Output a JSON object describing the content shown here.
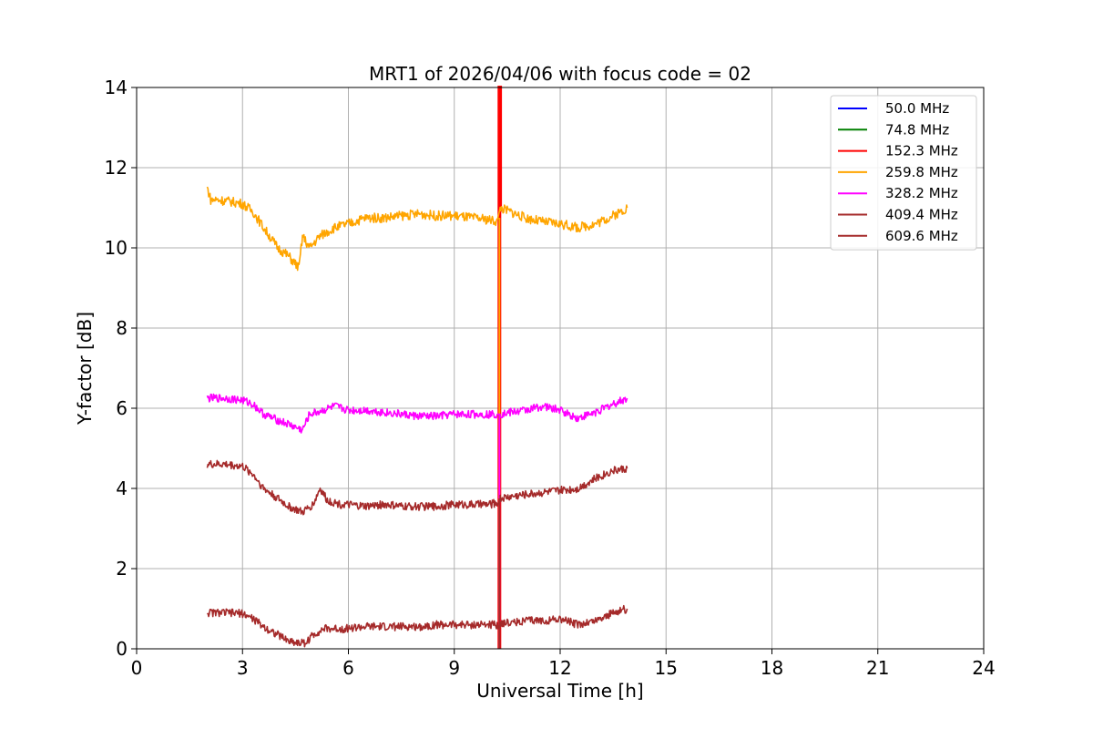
{
  "chart_data": {
    "type": "line",
    "title": "MRT1 of 2026/04/06 with focus code = 02",
    "xlabel": "Universal Time [h]",
    "ylabel": "Y-factor [dB]",
    "xlim": [
      0,
      24
    ],
    "ylim": [
      0,
      14
    ],
    "xticks": [
      0,
      3,
      6,
      9,
      12,
      15,
      18,
      21,
      24
    ],
    "yticks": [
      0,
      2,
      4,
      6,
      8,
      10,
      12,
      14
    ],
    "grid": true,
    "legend_position": "top-right",
    "series": [
      {
        "name": " 50.0 MHz",
        "color": "#0000ff",
        "x": [],
        "y": []
      },
      {
        "name": " 74.8 MHz",
        "color": "#008000",
        "x": [],
        "y": []
      },
      {
        "name": "152.3 MHz",
        "color": "#ff0000",
        "x": [
          10.28,
          10.28,
          10.3,
          10.3
        ],
        "y": [
          0,
          14,
          14,
          10.9
        ]
      },
      {
        "name": "259.8 MHz",
        "color": "#ffa500",
        "x": [
          2.0,
          2.1,
          2.3,
          2.7,
          3.0,
          3.3,
          3.6,
          4.0,
          4.3,
          4.6,
          4.7,
          4.9,
          5.2,
          5.6,
          6.0,
          6.5,
          7.0,
          7.5,
          8.0,
          8.5,
          9.0,
          9.5,
          10.0,
          10.25,
          10.3,
          10.6,
          11.0,
          11.5,
          12.0,
          12.5,
          13.0,
          13.5,
          13.9
        ],
        "y": [
          11.5,
          11.2,
          11.2,
          11.15,
          11.1,
          10.9,
          10.5,
          10.0,
          9.8,
          9.5,
          10.3,
          10.0,
          10.3,
          10.5,
          10.6,
          10.75,
          10.75,
          10.8,
          10.85,
          10.8,
          10.8,
          10.75,
          10.7,
          10.65,
          11.0,
          10.9,
          10.75,
          10.65,
          10.6,
          10.5,
          10.6,
          10.8,
          11.0
        ]
      },
      {
        "name": "328.2 MHz",
        "color": "#ff00ff",
        "x": [
          2.0,
          2.5,
          3.0,
          3.3,
          3.6,
          4.0,
          4.3,
          4.7,
          4.9,
          5.3,
          5.6,
          6.0,
          6.5,
          7.0,
          7.5,
          8.0,
          8.5,
          9.0,
          9.5,
          10.0,
          10.25,
          10.3,
          10.6,
          11.0,
          11.5,
          12.0,
          12.5,
          13.0,
          13.5,
          13.9
        ],
        "y": [
          6.25,
          6.25,
          6.2,
          6.1,
          5.85,
          5.7,
          5.6,
          5.45,
          5.85,
          5.95,
          6.05,
          5.95,
          5.95,
          5.9,
          5.85,
          5.8,
          5.8,
          5.85,
          5.85,
          5.85,
          5.85,
          5.85,
          5.9,
          5.95,
          6.05,
          5.95,
          5.75,
          5.9,
          6.1,
          6.25
        ]
      },
      {
        "name": "409.4 MHz",
        "color": "#a52a2a",
        "x": [
          2.0,
          2.5,
          3.0,
          3.3,
          3.6,
          4.0,
          4.3,
          4.7,
          5.0,
          5.2,
          5.4,
          5.8,
          6.5,
          7.0,
          7.5,
          8.0,
          8.5,
          9.0,
          9.5,
          10.0,
          10.25,
          10.3,
          10.6,
          11.0,
          11.5,
          12.0,
          12.5,
          13.0,
          13.5,
          13.9
        ],
        "y": [
          4.6,
          4.6,
          4.55,
          4.35,
          4.0,
          3.75,
          3.55,
          3.4,
          3.6,
          4.0,
          3.7,
          3.6,
          3.55,
          3.6,
          3.55,
          3.55,
          3.55,
          3.6,
          3.6,
          3.6,
          3.65,
          3.75,
          3.8,
          3.85,
          3.9,
          3.95,
          4.0,
          4.25,
          4.45,
          4.5
        ]
      },
      {
        "name": "609.6 MHz",
        "color": "#a52a2a",
        "x": [
          2.0,
          2.5,
          3.0,
          3.3,
          3.6,
          4.0,
          4.3,
          4.6,
          4.8,
          5.0,
          5.3,
          5.8,
          6.5,
          7.0,
          7.5,
          8.0,
          8.5,
          9.0,
          9.5,
          10.0,
          10.25,
          10.3,
          10.6,
          11.0,
          11.5,
          12.0,
          12.5,
          13.0,
          13.5,
          13.9
        ],
        "y": [
          0.9,
          0.9,
          0.88,
          0.75,
          0.55,
          0.35,
          0.2,
          0.15,
          0.15,
          0.35,
          0.5,
          0.5,
          0.55,
          0.55,
          0.55,
          0.55,
          0.6,
          0.6,
          0.6,
          0.6,
          0.6,
          0.65,
          0.65,
          0.7,
          0.7,
          0.75,
          0.6,
          0.7,
          0.9,
          1.0
        ]
      }
    ]
  }
}
